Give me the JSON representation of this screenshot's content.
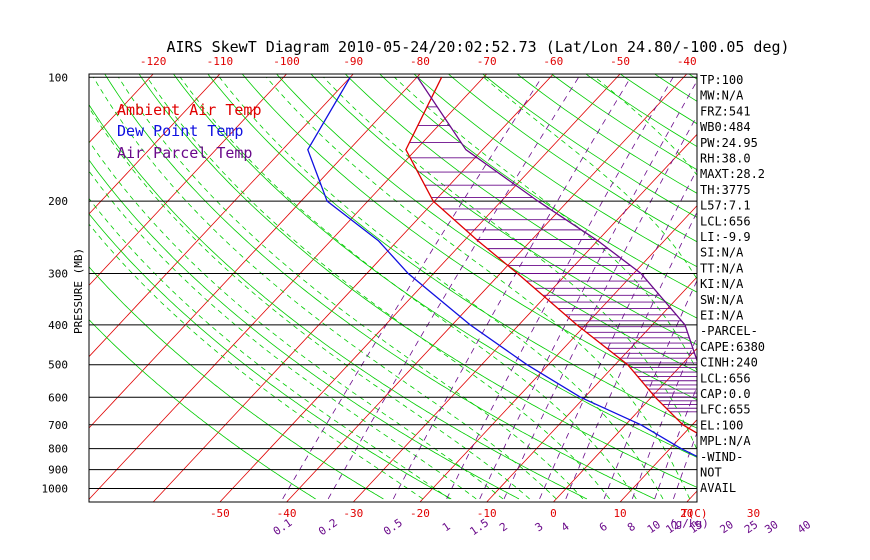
{
  "title": "AIRS SkewT Diagram 2010-05-24/20:02:52.73 (Lat/Lon 24.80/-100.05 deg)",
  "colors": {
    "ambient": "#e00000",
    "dewpoint": "#1010e0",
    "parcel": "#6a0a8a",
    "isotherm": "#e00000",
    "dry_adiabat": "#00cc00",
    "moist_adiabat": "#00cc00",
    "mixing_ratio": "#6a0a8a",
    "isobar": "#000000"
  },
  "legend": [
    "Ambient Air Temp",
    "Dew Point Temp",
    "Air Parcel Temp"
  ],
  "chart_data": {
    "type": "line",
    "title": "AIRS SkewT Diagram 2010-05-24/20:02:52.73 (Lat/Lon 24.80/-100.05 deg)",
    "ylabel": "PRESSURE (MB)",
    "xlabel": "T(C)",
    "mixing_ratio_label": "(g/kg)",
    "y_scale": "log",
    "ylim": [
      1050,
      100
    ],
    "pressure_ticks": [
      100,
      200,
      300,
      400,
      500,
      600,
      700,
      800,
      900,
      1000
    ],
    "bottom_temp_ticks": [
      -50,
      -40,
      -30,
      -20,
      -10,
      0,
      10,
      20,
      30
    ],
    "top_temp_ticks": [
      -120,
      -110,
      -100,
      -90,
      -80,
      -70,
      -60,
      -50,
      -40
    ],
    "mixing_ratio_ticks": [
      "0.1",
      "0.2",
      "0.5",
      "1",
      "1.5",
      "2",
      "3",
      "4",
      "6",
      "8",
      "10",
      "12",
      "15",
      "20",
      "25",
      "30",
      "40"
    ],
    "series": [
      {
        "name": "Ambient Air Temp",
        "points": [
          [
            100,
            -76.3
          ],
          [
            150,
            -71.5
          ],
          [
            200,
            -60.2
          ],
          [
            250,
            -47.9
          ],
          [
            300,
            -37.4
          ],
          [
            400,
            -21.3
          ],
          [
            500,
            -8.1
          ],
          [
            600,
            0.6
          ],
          [
            700,
            8.6
          ],
          [
            800,
            18.0
          ],
          [
            850,
            23.7
          ]
        ]
      },
      {
        "name": "Dew Point Temp",
        "points": [
          [
            100,
            -90.0
          ],
          [
            150,
            -86.2
          ],
          [
            200,
            -76.1
          ],
          [
            250,
            -62.8
          ],
          [
            300,
            -53.8
          ],
          [
            400,
            -37.3
          ],
          [
            500,
            -23.2
          ],
          [
            600,
            -10.6
          ],
          [
            700,
            2.3
          ],
          [
            800,
            11.7
          ],
          [
            850,
            16.5
          ]
        ]
      },
      {
        "name": "Air Parcel Temp",
        "points": [
          [
            100,
            -79.9
          ],
          [
            150,
            -62.5
          ],
          [
            200,
            -44.5
          ],
          [
            250,
            -29.9
          ],
          [
            300,
            -18.9
          ],
          [
            400,
            -5.1
          ],
          [
            500,
            2.5
          ],
          [
            600,
            9.2
          ],
          [
            656,
            13.5
          ],
          [
            700,
            16.7
          ],
          [
            800,
            25.0
          ],
          [
            850,
            29.5
          ]
        ]
      }
    ]
  },
  "indices": [
    "TP:100",
    "MW:N/A",
    "FRZ:541",
    "WB0:484",
    "PW:24.95",
    "RH:38.0",
    "MAXT:28.2",
    "TH:3775",
    "L57:7.1",
    "LCL:656",
    "LI:-9.9",
    "SI:N/A",
    "TT:N/A",
    "KI:N/A",
    "SW:N/A",
    "EI:N/A",
    "-PARCEL-",
    "CAPE:6380",
    "CINH:240",
    "LCL:656",
    "CAP:0.0",
    "LFC:655",
    "EL:100",
    "MPL:N/A",
    "-WIND-",
    "NOT",
    "AVAIL"
  ]
}
